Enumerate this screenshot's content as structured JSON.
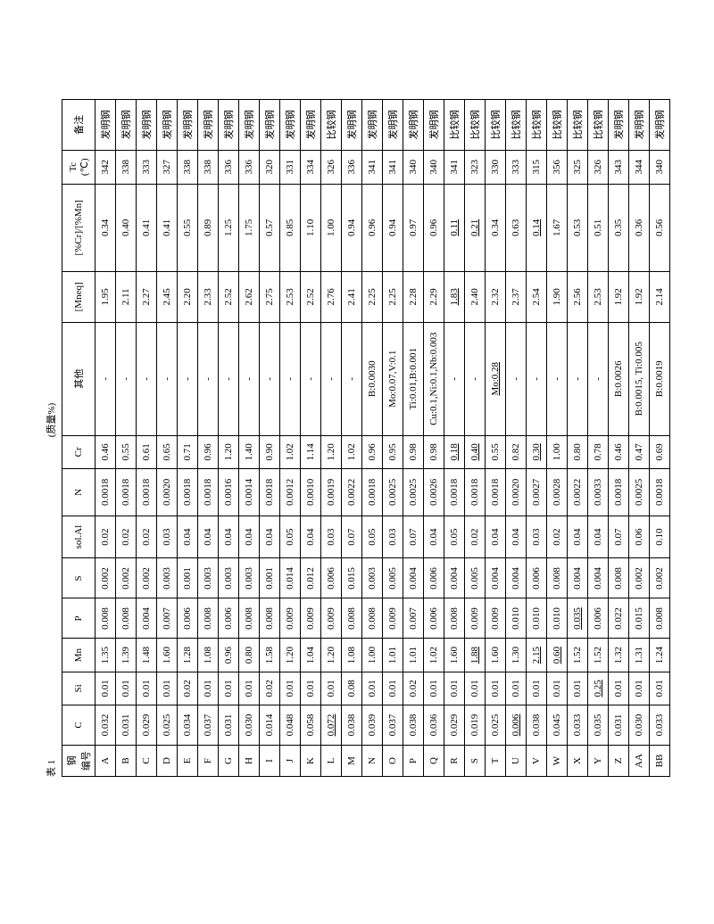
{
  "title_left": "表 1",
  "title_right": "(质量%)",
  "columns": [
    "钢\n编号",
    "C",
    "Si",
    "Mn",
    "P",
    "S",
    "sol.Al",
    "N",
    "Cr",
    "其他",
    "[Mneq]",
    "[%Cr]/[%Mn]",
    "Tc\n(℃)",
    "备注"
  ],
  "rows": [
    {
      "id": "A",
      "c": "0.032",
      "si": "0.01",
      "mn": "1.35",
      "p": "0.008",
      "s": "0.002",
      "al": "0.02",
      "n": "0.0018",
      "cr": "0.46",
      "other": "-",
      "mneq": "1.95",
      "ratio": "0.34",
      "tc": "342",
      "note": "发明钢",
      "u": {}
    },
    {
      "id": "B",
      "c": "0.031",
      "si": "0.01",
      "mn": "1.39",
      "p": "0.008",
      "s": "0.002",
      "al": "0.02",
      "n": "0.0018",
      "cr": "0.55",
      "other": "-",
      "mneq": "2.11",
      "ratio": "0.40",
      "tc": "338",
      "note": "发明钢",
      "u": {}
    },
    {
      "id": "C",
      "c": "0.029",
      "si": "0.01",
      "mn": "1.48",
      "p": "0.004",
      "s": "0.002",
      "al": "0.02",
      "n": "0.0018",
      "cr": "0.61",
      "other": "-",
      "mneq": "2.27",
      "ratio": "0.41",
      "tc": "333",
      "note": "发明钢",
      "u": {}
    },
    {
      "id": "D",
      "c": "0.025",
      "si": "0.01",
      "mn": "1.60",
      "p": "0.007",
      "s": "0.003",
      "al": "0.03",
      "n": "0.0020",
      "cr": "0.65",
      "other": "-",
      "mneq": "2.45",
      "ratio": "0.41",
      "tc": "327",
      "note": "发明钢",
      "u": {}
    },
    {
      "id": "E",
      "c": "0.034",
      "si": "0.02",
      "mn": "1.28",
      "p": "0.006",
      "s": "0.001",
      "al": "0.04",
      "n": "0.0018",
      "cr": "0.71",
      "other": "-",
      "mneq": "2.20",
      "ratio": "0.55",
      "tc": "338",
      "note": "发明钢",
      "u": {}
    },
    {
      "id": "F",
      "c": "0.037",
      "si": "0.01",
      "mn": "1.08",
      "p": "0.008",
      "s": "0.003",
      "al": "0.04",
      "n": "0.0018",
      "cr": "0.96",
      "other": "-",
      "mneq": "2.33",
      "ratio": "0.89",
      "tc": "338",
      "note": "发明钢",
      "u": {}
    },
    {
      "id": "G",
      "c": "0.031",
      "si": "0.01",
      "mn": "0.96",
      "p": "0.006",
      "s": "0.003",
      "al": "0.04",
      "n": "0.0016",
      "cr": "1.20",
      "other": "-",
      "mneq": "2.52",
      "ratio": "1.25",
      "tc": "336",
      "note": "发明钢",
      "u": {}
    },
    {
      "id": "H",
      "c": "0.030",
      "si": "0.01",
      "mn": "0.80",
      "p": "0.008",
      "s": "0.003",
      "al": "0.04",
      "n": "0.0014",
      "cr": "1.40",
      "other": "-",
      "mneq": "2.62",
      "ratio": "1.75",
      "tc": "336",
      "note": "发明钢",
      "u": {}
    },
    {
      "id": "I",
      "c": "0.014",
      "si": "0.02",
      "mn": "1.58",
      "p": "0.008",
      "s": "0.001",
      "al": "0.04",
      "n": "0.0018",
      "cr": "0.90",
      "other": "-",
      "mneq": "2.75",
      "ratio": "0.57",
      "tc": "320",
      "note": "发明钢",
      "u": {}
    },
    {
      "id": "J",
      "c": "0.048",
      "si": "0.01",
      "mn": "1.20",
      "p": "0.009",
      "s": "0.014",
      "al": "0.05",
      "n": "0.0012",
      "cr": "1.02",
      "other": "-",
      "mneq": "2.53",
      "ratio": "0.85",
      "tc": "331",
      "note": "发明钢",
      "u": {}
    },
    {
      "id": "K",
      "c": "0.058",
      "si": "0.01",
      "mn": "1.04",
      "p": "0.009",
      "s": "0.012",
      "al": "0.04",
      "n": "0.0010",
      "cr": "1.14",
      "other": "-",
      "mneq": "2.52",
      "ratio": "1.10",
      "tc": "334",
      "note": "发明钢",
      "u": {}
    },
    {
      "id": "L",
      "c": "0.072",
      "si": "0.01",
      "mn": "1.20",
      "p": "0.009",
      "s": "0.006",
      "al": "0.03",
      "n": "0.0019",
      "cr": "1.20",
      "other": "-",
      "mneq": "2.76",
      "ratio": "1.00",
      "tc": "326",
      "note": "比较钢",
      "u": {
        "c": 1
      }
    },
    {
      "id": "M",
      "c": "0.038",
      "si": "0.08",
      "mn": "1.08",
      "p": "0.008",
      "s": "0.015",
      "al": "0.07",
      "n": "0.0022",
      "cr": "1.02",
      "other": "-",
      "mneq": "2.41",
      "ratio": "0.94",
      "tc": "336",
      "note": "发明钢",
      "u": {}
    },
    {
      "id": "N",
      "c": "0.039",
      "si": "0.01",
      "mn": "1.00",
      "p": "0.008",
      "s": "0.003",
      "al": "0.05",
      "n": "0.0018",
      "cr": "0.96",
      "other": "B:0.0030",
      "mneq": "2.25",
      "ratio": "0.96",
      "tc": "341",
      "note": "发明钢",
      "u": {}
    },
    {
      "id": "O",
      "c": "0.037",
      "si": "0.01",
      "mn": "1.01",
      "p": "0.009",
      "s": "0.005",
      "al": "0.03",
      "n": "0.0025",
      "cr": "0.95",
      "other": "Mo:0.07,V:0.1",
      "mneq": "2.25",
      "ratio": "0.94",
      "tc": "341",
      "note": "发明钢",
      "u": {}
    },
    {
      "id": "P",
      "c": "0.038",
      "si": "0.02",
      "mn": "1.01",
      "p": "0.007",
      "s": "0.004",
      "al": "0.07",
      "n": "0.0025",
      "cr": "0.98",
      "other": "Ti:0.01,B:0.001",
      "mneq": "2.28",
      "ratio": "0.97",
      "tc": "340",
      "note": "发明钢",
      "u": {}
    },
    {
      "id": "Q",
      "c": "0.036",
      "si": "0.01",
      "mn": "1.02",
      "p": "0.006",
      "s": "0.006",
      "al": "0.04",
      "n": "0.0026",
      "cr": "0.98",
      "other": "Cu:0.1,Ni:0.1,Nb:0.003",
      "mneq": "2.29",
      "ratio": "0.96",
      "tc": "340",
      "note": "发明钢",
      "u": {}
    },
    {
      "id": "R",
      "c": "0.029",
      "si": "0.01",
      "mn": "1.60",
      "p": "0.008",
      "s": "0.004",
      "al": "0.05",
      "n": "0.0018",
      "cr": "0.18",
      "other": "-",
      "mneq": "1.83",
      "ratio": "0.11",
      "tc": "341",
      "note": "比较钢",
      "u": {
        "cr": 1,
        "mneq": 1,
        "ratio": 1
      }
    },
    {
      "id": "S",
      "c": "0.019",
      "si": "0.01",
      "mn": "1.88",
      "p": "0.009",
      "s": "0.005",
      "al": "0.02",
      "n": "0.0018",
      "cr": "0.40",
      "other": "-",
      "mneq": "2.40",
      "ratio": "0.21",
      "tc": "323",
      "note": "比较钢",
      "u": {
        "mn": 1,
        "cr": 1,
        "ratio": 1
      }
    },
    {
      "id": "T",
      "c": "0.025",
      "si": "0.01",
      "mn": "1.60",
      "p": "0.009",
      "s": "0.004",
      "al": "0.04",
      "n": "0.0018",
      "cr": "0.55",
      "other": "Mo:0.28",
      "mneq": "2.32",
      "ratio": "0.34",
      "tc": "330",
      "note": "比较钢",
      "u": {
        "other": 1
      }
    },
    {
      "id": "U",
      "c": "0.006",
      "si": "0.01",
      "mn": "1.30",
      "p": "0.010",
      "s": "0.004",
      "al": "0.04",
      "n": "0.0020",
      "cr": "0.82",
      "other": "-",
      "mneq": "2.37",
      "ratio": "0.63",
      "tc": "333",
      "note": "比较钢",
      "u": {
        "c": 1
      }
    },
    {
      "id": "V",
      "c": "0.038",
      "si": "0.01",
      "mn": "2.15",
      "p": "0.010",
      "s": "0.006",
      "al": "0.03",
      "n": "0.0027",
      "cr": "0.30",
      "other": "-",
      "mneq": "2.54",
      "ratio": "0.14",
      "tc": "315",
      "note": "比较钢",
      "u": {
        "mn": 1,
        "cr": 1,
        "ratio": 1
      }
    },
    {
      "id": "W",
      "c": "0.045",
      "si": "0.01",
      "mn": "0.60",
      "p": "0.010",
      "s": "0.008",
      "al": "0.02",
      "n": "0.0028",
      "cr": "1.00",
      "other": "-",
      "mneq": "1.90",
      "ratio": "1.67",
      "tc": "356",
      "note": "比较钢",
      "u": {
        "mn": 1
      }
    },
    {
      "id": "X",
      "c": "0.033",
      "si": "0.01",
      "mn": "1.52",
      "p": "0.035",
      "s": "0.004",
      "al": "0.04",
      "n": "0.0022",
      "cr": "0.80",
      "other": "-",
      "mneq": "2.56",
      "ratio": "0.53",
      "tc": "325",
      "note": "比较钢",
      "u": {
        "p": 1
      }
    },
    {
      "id": "Y",
      "c": "0.035",
      "si": "0.25",
      "mn": "1.52",
      "p": "0.006",
      "s": "0.004",
      "al": "0.04",
      "n": "0.0033",
      "cr": "0.78",
      "other": "-",
      "mneq": "2.53",
      "ratio": "0.51",
      "tc": "326",
      "note": "比较钢",
      "u": {
        "si": 1
      }
    },
    {
      "id": "Z",
      "c": "0.031",
      "si": "0.01",
      "mn": "1.32",
      "p": "0.022",
      "s": "0.008",
      "al": "0.07",
      "n": "0.0018",
      "cr": "0.46",
      "other": "B:0.0026",
      "mneq": "1.92",
      "ratio": "0.35",
      "tc": "343",
      "note": "发明钢",
      "u": {}
    },
    {
      "id": "AA",
      "c": "0.030",
      "si": "0.01",
      "mn": "1.31",
      "p": "0.015",
      "s": "0.002",
      "al": "0.06",
      "n": "0.0025",
      "cr": "0.47",
      "other": "B:0.0015, Ti:0.005",
      "mneq": "1.92",
      "ratio": "0.36",
      "tc": "344",
      "note": "发明钢",
      "u": {}
    },
    {
      "id": "BB",
      "c": "0.033",
      "si": "0.01",
      "mn": "1.24",
      "p": "0.008",
      "s": "0.002",
      "al": "0.10",
      "n": "0.0018",
      "cr": "0.69",
      "other": "B:0.0019",
      "mneq": "2.14",
      "ratio": "0.56",
      "tc": "340",
      "note": "发明钢",
      "u": {}
    }
  ]
}
